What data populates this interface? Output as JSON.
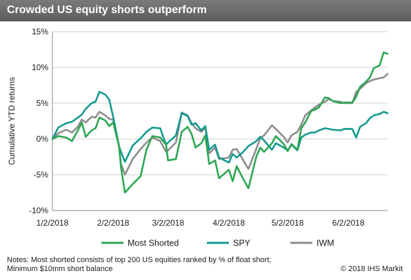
{
  "title": "Crowded US equity shorts outperform",
  "notes": "Notes: Most shorted consists of top 200 US equities ranked by % of float short; Minimum $10mm short balance",
  "copyright": "© 2018 IHS Markit",
  "colors": {
    "header_bg": "#6b6b6b",
    "most_shorted": "#2ca653",
    "spy": "#139a8f",
    "iwm": "#8c8c8c",
    "grid": "#cfcfcf"
  },
  "chart_data": {
    "type": "line",
    "title": "Crowded US equity shorts outperform",
    "xlabel": "",
    "ylabel": "Cumulative YTD returns",
    "ylim": [
      -10,
      15
    ],
    "xlim": [
      "2018-01-02",
      "2018-06-22"
    ],
    "y_ticks": [
      -10,
      -5,
      0,
      5,
      10,
      15
    ],
    "y_tick_labels": [
      "-10%",
      "-5%",
      "0%",
      "5%",
      "10%",
      "15%"
    ],
    "x_ticks": [
      "2018-01-02",
      "2018-02-02",
      "2018-03-02",
      "2018-04-02",
      "2018-05-02",
      "2018-06-02"
    ],
    "x_tick_labels": [
      "1/2/2018",
      "2/2/2018",
      "3/2/2018",
      "4/2/2018",
      "5/2/2018",
      "6/2/2018"
    ],
    "grid": "horizontal",
    "legend": "bottom",
    "series": [
      {
        "name": "Most Shorted",
        "color": "#2ca653",
        "points": [
          [
            "2018-01-02",
            0
          ],
          [
            "2018-01-05",
            0.4
          ],
          [
            "2018-01-09",
            0.2
          ],
          [
            "2018-01-12",
            -0.3
          ],
          [
            "2018-01-15",
            1.2
          ],
          [
            "2018-01-17",
            2.3
          ],
          [
            "2018-01-19",
            0.3
          ],
          [
            "2018-01-22",
            1.2
          ],
          [
            "2018-01-24",
            1.5
          ],
          [
            "2018-01-26",
            3.0
          ],
          [
            "2018-01-29",
            2.6
          ],
          [
            "2018-01-31",
            1.8
          ],
          [
            "2018-02-02",
            2.3
          ],
          [
            "2018-02-05",
            -1.0
          ],
          [
            "2018-02-06",
            -4.0
          ],
          [
            "2018-02-08",
            -7.5
          ],
          [
            "2018-02-12",
            -6.3
          ],
          [
            "2018-02-16",
            -5.2
          ],
          [
            "2018-02-19",
            -1.5
          ],
          [
            "2018-02-22",
            0.4
          ],
          [
            "2018-02-26",
            0.2
          ],
          [
            "2018-03-01",
            -0.8
          ],
          [
            "2018-03-02",
            -3.0
          ],
          [
            "2018-03-06",
            -2.8
          ],
          [
            "2018-03-09",
            1.0
          ],
          [
            "2018-03-12",
            1.7
          ],
          [
            "2018-03-14",
            0.7
          ],
          [
            "2018-03-16",
            -1.2
          ],
          [
            "2018-03-19",
            -0.6
          ],
          [
            "2018-03-21",
            0.5
          ],
          [
            "2018-03-23",
            -3.5
          ],
          [
            "2018-03-26",
            -3.0
          ],
          [
            "2018-03-28",
            -5.5
          ],
          [
            "2018-04-02",
            -4.3
          ],
          [
            "2018-04-04",
            -5.9
          ],
          [
            "2018-04-06",
            -3.8
          ],
          [
            "2018-04-09",
            -5.4
          ],
          [
            "2018-04-12",
            -6.9
          ],
          [
            "2018-04-16",
            -2.5
          ],
          [
            "2018-04-18",
            -1.2
          ],
          [
            "2018-04-20",
            -1.8
          ],
          [
            "2018-04-24",
            -0.6
          ],
          [
            "2018-04-26",
            0.4
          ],
          [
            "2018-04-30",
            -0.7
          ],
          [
            "2018-05-02",
            -1.7
          ],
          [
            "2018-05-04",
            -0.7
          ],
          [
            "2018-05-07",
            -1.5
          ],
          [
            "2018-05-09",
            1.5
          ],
          [
            "2018-05-11",
            2.3
          ],
          [
            "2018-05-14",
            3.9
          ],
          [
            "2018-05-16",
            4.1
          ],
          [
            "2018-05-18",
            4.4
          ],
          [
            "2018-05-21",
            5.8
          ],
          [
            "2018-05-23",
            5.7
          ],
          [
            "2018-05-25",
            5.3
          ],
          [
            "2018-05-29",
            5.0
          ],
          [
            "2018-05-31",
            5.1
          ],
          [
            "2018-06-04",
            5.1
          ],
          [
            "2018-06-06",
            5.9
          ],
          [
            "2018-06-08",
            7.3
          ],
          [
            "2018-06-11",
            8.0
          ],
          [
            "2018-06-13",
            8.6
          ],
          [
            "2018-06-15",
            9.9
          ],
          [
            "2018-06-18",
            10.3
          ],
          [
            "2018-06-20",
            12.1
          ],
          [
            "2018-06-22",
            11.9
          ]
        ]
      },
      {
        "name": "SPY",
        "color": "#139a8f",
        "points": [
          [
            "2018-01-02",
            0
          ],
          [
            "2018-01-05",
            1.6
          ],
          [
            "2018-01-09",
            2.2
          ],
          [
            "2018-01-12",
            2.4
          ],
          [
            "2018-01-15",
            3.0
          ],
          [
            "2018-01-17",
            3.4
          ],
          [
            "2018-01-19",
            4.2
          ],
          [
            "2018-01-22",
            5.0
          ],
          [
            "2018-01-24",
            5.2
          ],
          [
            "2018-01-26",
            6.6
          ],
          [
            "2018-01-29",
            6.2
          ],
          [
            "2018-01-31",
            5.5
          ],
          [
            "2018-02-02",
            3.1
          ],
          [
            "2018-02-05",
            -1.0
          ],
          [
            "2018-02-06",
            -1.8
          ],
          [
            "2018-02-08",
            -3.2
          ],
          [
            "2018-02-12",
            -0.9
          ],
          [
            "2018-02-16",
            0.1
          ],
          [
            "2018-02-19",
            1.0
          ],
          [
            "2018-02-22",
            1.6
          ],
          [
            "2018-02-26",
            1.5
          ],
          [
            "2018-03-01",
            -0.8
          ],
          [
            "2018-03-02",
            -0.5
          ],
          [
            "2018-03-06",
            0.5
          ],
          [
            "2018-03-09",
            3.6
          ],
          [
            "2018-03-12",
            3.2
          ],
          [
            "2018-03-14",
            2.0
          ],
          [
            "2018-03-16",
            2.2
          ],
          [
            "2018-03-19",
            1.2
          ],
          [
            "2018-03-21",
            1.8
          ],
          [
            "2018-03-23",
            -1.5
          ],
          [
            "2018-03-26",
            -0.8
          ],
          [
            "2018-03-28",
            -2.6
          ],
          [
            "2018-04-02",
            -3.3
          ],
          [
            "2018-04-04",
            -2.1
          ],
          [
            "2018-04-06",
            -2.6
          ],
          [
            "2018-04-09",
            -1.9
          ],
          [
            "2018-04-12",
            -1.0
          ],
          [
            "2018-04-16",
            -0.3
          ],
          [
            "2018-04-18",
            0.3
          ],
          [
            "2018-04-20",
            -0.2
          ],
          [
            "2018-04-24",
            -1.5
          ],
          [
            "2018-04-26",
            -0.6
          ],
          [
            "2018-04-30",
            -1.2
          ],
          [
            "2018-05-02",
            -1.6
          ],
          [
            "2018-05-04",
            -0.8
          ],
          [
            "2018-05-07",
            -1.6
          ],
          [
            "2018-05-09",
            0.2
          ],
          [
            "2018-05-11",
            0.6
          ],
          [
            "2018-05-14",
            0.9
          ],
          [
            "2018-05-16",
            0.9
          ],
          [
            "2018-05-18",
            1.2
          ],
          [
            "2018-05-21",
            1.5
          ],
          [
            "2018-05-23",
            1.4
          ],
          [
            "2018-05-25",
            1.3
          ],
          [
            "2018-05-29",
            1.2
          ],
          [
            "2018-05-31",
            1.4
          ],
          [
            "2018-06-04",
            1.4
          ],
          [
            "2018-06-06",
            0.2
          ],
          [
            "2018-06-08",
            1.7
          ],
          [
            "2018-06-11",
            2.2
          ],
          [
            "2018-06-13",
            2.9
          ],
          [
            "2018-06-15",
            3.3
          ],
          [
            "2018-06-18",
            3.5
          ],
          [
            "2018-06-20",
            3.8
          ],
          [
            "2018-06-22",
            3.6
          ]
        ]
      },
      {
        "name": "IWM",
        "color": "#8c8c8c",
        "points": [
          [
            "2018-01-02",
            0
          ],
          [
            "2018-01-05",
            0.8
          ],
          [
            "2018-01-09",
            1.3
          ],
          [
            "2018-01-12",
            0.9
          ],
          [
            "2018-01-15",
            1.7
          ],
          [
            "2018-01-17",
            2.7
          ],
          [
            "2018-01-19",
            2.3
          ],
          [
            "2018-01-22",
            3.1
          ],
          [
            "2018-01-24",
            3.0
          ],
          [
            "2018-01-26",
            3.8
          ],
          [
            "2018-01-29",
            3.3
          ],
          [
            "2018-01-31",
            2.8
          ],
          [
            "2018-02-02",
            2.7
          ],
          [
            "2018-02-05",
            -1.0
          ],
          [
            "2018-02-06",
            -3.5
          ],
          [
            "2018-02-08",
            -5.0
          ],
          [
            "2018-02-12",
            -2.8
          ],
          [
            "2018-02-16",
            -1.4
          ],
          [
            "2018-02-19",
            -0.5
          ],
          [
            "2018-02-22",
            0.2
          ],
          [
            "2018-02-26",
            -0.3
          ],
          [
            "2018-03-01",
            -1.8
          ],
          [
            "2018-03-02",
            -1.6
          ],
          [
            "2018-03-06",
            -0.5
          ],
          [
            "2018-03-09",
            3.7
          ],
          [
            "2018-03-12",
            3.3
          ],
          [
            "2018-03-14",
            2.2
          ],
          [
            "2018-03-16",
            1.5
          ],
          [
            "2018-03-19",
            1.0
          ],
          [
            "2018-03-21",
            1.6
          ],
          [
            "2018-03-23",
            -2.0
          ],
          [
            "2018-03-26",
            -1.2
          ],
          [
            "2018-03-28",
            -2.8
          ],
          [
            "2018-04-02",
            -2.6
          ],
          [
            "2018-04-04",
            -1.5
          ],
          [
            "2018-04-06",
            -1.4
          ],
          [
            "2018-04-09",
            -2.8
          ],
          [
            "2018-04-12",
            -4.2
          ],
          [
            "2018-04-16",
            -1.4
          ],
          [
            "2018-04-18",
            0.1
          ],
          [
            "2018-04-20",
            0.5
          ],
          [
            "2018-04-24",
            1.9
          ],
          [
            "2018-04-26",
            1.4
          ],
          [
            "2018-04-30",
            0.3
          ],
          [
            "2018-05-02",
            -0.5
          ],
          [
            "2018-05-04",
            0.5
          ],
          [
            "2018-05-07",
            1.0
          ],
          [
            "2018-05-09",
            2.0
          ],
          [
            "2018-05-11",
            3.3
          ],
          [
            "2018-05-14",
            4.0
          ],
          [
            "2018-05-16",
            4.4
          ],
          [
            "2018-05-18",
            4.8
          ],
          [
            "2018-05-21",
            5.2
          ],
          [
            "2018-05-23",
            5.6
          ],
          [
            "2018-05-25",
            5.3
          ],
          [
            "2018-05-29",
            5.2
          ],
          [
            "2018-05-31",
            5.0
          ],
          [
            "2018-06-04",
            5.0
          ],
          [
            "2018-06-06",
            6.6
          ],
          [
            "2018-06-08",
            7.0
          ],
          [
            "2018-06-11",
            7.8
          ],
          [
            "2018-06-13",
            8.1
          ],
          [
            "2018-06-15",
            8.3
          ],
          [
            "2018-06-18",
            8.5
          ],
          [
            "2018-06-20",
            8.6
          ],
          [
            "2018-06-22",
            9.1
          ]
        ]
      }
    ]
  }
}
